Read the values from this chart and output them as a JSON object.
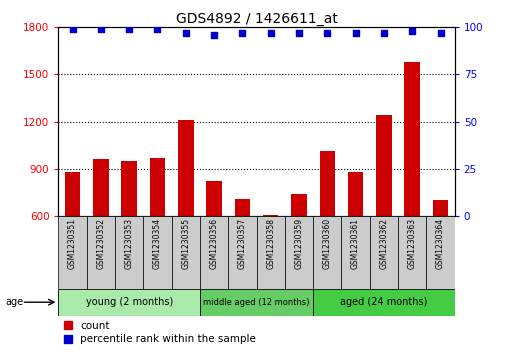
{
  "title": "GDS4892 / 1426611_at",
  "samples": [
    "GSM1230351",
    "GSM1230352",
    "GSM1230353",
    "GSM1230354",
    "GSM1230355",
    "GSM1230356",
    "GSM1230357",
    "GSM1230358",
    "GSM1230359",
    "GSM1230360",
    "GSM1230361",
    "GSM1230362",
    "GSM1230363",
    "GSM1230364"
  ],
  "counts": [
    880,
    960,
    950,
    970,
    1210,
    820,
    710,
    605,
    740,
    1010,
    880,
    1240,
    1580,
    700
  ],
  "percentiles": [
    99,
    99,
    99,
    99,
    97,
    96,
    97,
    97,
    97,
    97,
    97,
    97,
    98,
    97
  ],
  "bar_color": "#cc0000",
  "dot_color": "#0000cc",
  "ylim_left": [
    600,
    1800
  ],
  "ylim_right": [
    0,
    100
  ],
  "yticks_left": [
    600,
    900,
    1200,
    1500,
    1800
  ],
  "yticks_right": [
    0,
    25,
    50,
    75,
    100
  ],
  "groups": [
    {
      "label": "young (2 months)",
      "start": 0,
      "end": 5,
      "color": "#aaeaaa"
    },
    {
      "label": "middle aged (12 months)",
      "start": 5,
      "end": 9,
      "color": "#66cc66"
    },
    {
      "label": "aged (24 months)",
      "start": 9,
      "end": 14,
      "color": "#44cc44"
    }
  ],
  "age_label": "age",
  "legend_count_label": "count",
  "legend_percentile_label": "percentile rank within the sample",
  "bar_bottom": 600,
  "label_box_color": "#cccccc",
  "dot_size": 20
}
